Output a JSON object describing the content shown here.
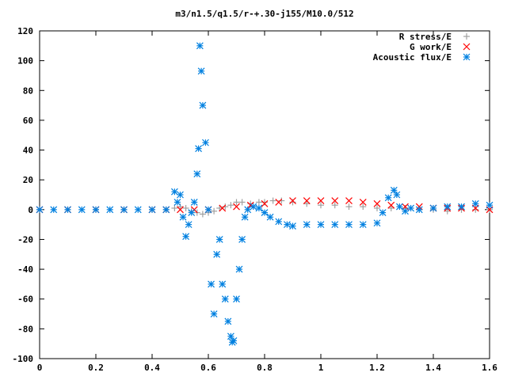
{
  "chart_data": {
    "type": "scatter",
    "title": "m3/n1.5/q1.5/r-+.30-j155/M10.0/512",
    "xlabel": "",
    "ylabel": "",
    "xlim": [
      0,
      1.6
    ],
    "ylim": [
      -100,
      120
    ],
    "xticks": [
      0,
      0.2,
      0.4,
      0.6,
      0.8,
      1,
      1.2,
      1.4,
      1.6
    ],
    "xtick_labels": [
      "0",
      "0.2",
      "0.4",
      "0.6",
      "0.8",
      "1",
      "1.2",
      "1.4",
      "1.6"
    ],
    "yticks": [
      -100,
      -80,
      -60,
      -40,
      -20,
      0,
      20,
      40,
      60,
      80,
      100,
      120
    ],
    "ytick_labels": [
      "-100",
      "-80",
      "-60",
      "-40",
      "-20",
      "0",
      "20",
      "40",
      "60",
      "80",
      "100",
      "120"
    ],
    "grid": false,
    "legend_position": "top-right",
    "series": [
      {
        "name": "R stress/E",
        "marker": "+",
        "color": "#a0a0a0",
        "x": [
          0.0,
          0.1,
          0.2,
          0.3,
          0.4,
          0.45,
          0.48,
          0.5,
          0.52,
          0.54,
          0.56,
          0.58,
          0.6,
          0.62,
          0.64,
          0.66,
          0.68,
          0.7,
          0.72,
          0.75,
          0.78,
          0.8,
          0.83,
          0.86,
          0.9,
          0.95,
          1.0,
          1.05,
          1.1,
          1.15,
          1.2,
          1.25,
          1.3,
          1.35,
          1.4,
          1.45,
          1.5,
          1.55,
          1.6
        ],
        "y": [
          0,
          0,
          0,
          0,
          0,
          0,
          1,
          2,
          1,
          -1,
          -2,
          -3,
          -2,
          -1,
          1,
          2,
          3,
          5,
          5,
          4,
          5,
          5,
          6,
          6,
          5,
          4,
          3,
          3,
          2,
          2,
          1,
          1,
          1,
          0,
          0,
          -1,
          0,
          0,
          0
        ]
      },
      {
        "name": "G work/E",
        "marker": "x",
        "color": "#ff0000",
        "x": [
          0.0,
          0.1,
          0.2,
          0.3,
          0.4,
          0.45,
          0.5,
          0.55,
          0.6,
          0.65,
          0.7,
          0.75,
          0.8,
          0.85,
          0.9,
          0.95,
          1.0,
          1.05,
          1.1,
          1.15,
          1.2,
          1.25,
          1.3,
          1.35,
          1.4,
          1.45,
          1.5,
          1.55,
          1.6
        ],
        "y": [
          0,
          0,
          0,
          0,
          0,
          0,
          0,
          0,
          0,
          1,
          2,
          3,
          4,
          5,
          6,
          6,
          6,
          6,
          6,
          5,
          4,
          3,
          2,
          2,
          1,
          1,
          1,
          1,
          0
        ]
      },
      {
        "name": "Acoustic flux/E",
        "marker": "*",
        "color": "#0080e0",
        "x": [
          0.0,
          0.05,
          0.1,
          0.15,
          0.2,
          0.25,
          0.3,
          0.35,
          0.4,
          0.45,
          0.48,
          0.49,
          0.5,
          0.51,
          0.52,
          0.53,
          0.54,
          0.55,
          0.56,
          0.565,
          0.57,
          0.575,
          0.58,
          0.59,
          0.6,
          0.61,
          0.62,
          0.63,
          0.64,
          0.65,
          0.66,
          0.67,
          0.68,
          0.685,
          0.69,
          0.7,
          0.71,
          0.72,
          0.73,
          0.74,
          0.76,
          0.78,
          0.8,
          0.82,
          0.85,
          0.88,
          0.9,
          0.95,
          1.0,
          1.05,
          1.1,
          1.15,
          1.2,
          1.22,
          1.24,
          1.26,
          1.27,
          1.28,
          1.3,
          1.32,
          1.35,
          1.4,
          1.45,
          1.5,
          1.55,
          1.6
        ],
        "y": [
          0,
          0,
          0,
          0,
          0,
          0,
          0,
          0,
          0,
          0,
          12,
          5,
          10,
          -5,
          -18,
          -10,
          -2,
          5,
          24,
          41,
          110,
          93,
          70,
          45,
          0,
          -50,
          -70,
          -30,
          -20,
          -50,
          -60,
          -75,
          -85,
          -89,
          -88,
          -60,
          -40,
          -20,
          -5,
          0,
          2,
          1,
          -2,
          -5,
          -8,
          -10,
          -11,
          -10,
          -10,
          -10,
          -10,
          -10,
          -9,
          -2,
          8,
          13,
          10,
          2,
          -1,
          1,
          0,
          1,
          2,
          2,
          4,
          3
        ]
      }
    ]
  }
}
